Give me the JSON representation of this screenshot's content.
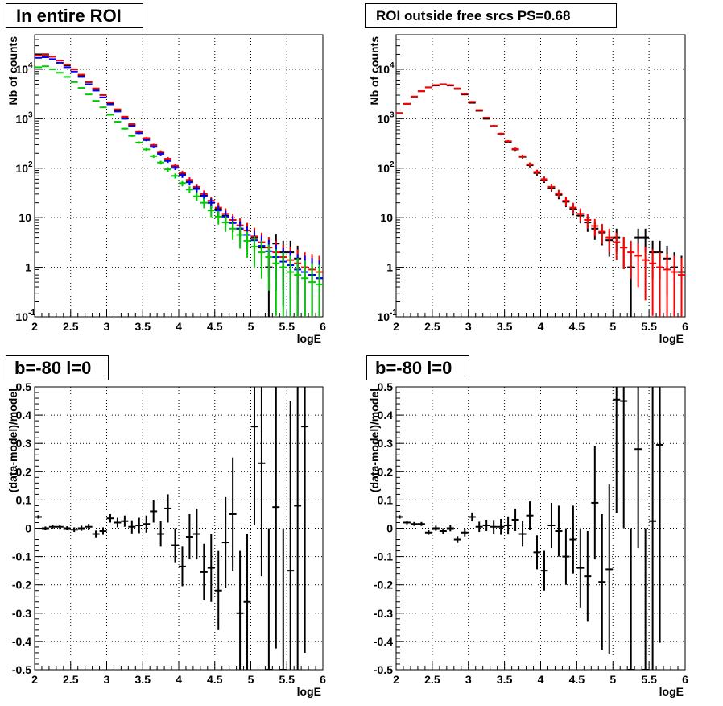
{
  "titles": {
    "p1": "In entire ROI",
    "p2": "ROI outside free srcs PS=0.68",
    "p3": "b=-80 l=0",
    "p4": "b=-80 l=0"
  },
  "colors": {
    "data": "#000000",
    "model": "#ff0000",
    "blue": "#0000ff",
    "green": "#00cc00",
    "grid": "#000000"
  },
  "chart_data": [
    {
      "type": "scatter",
      "title": "In entire ROI",
      "xlabel": "logE",
      "ylabel": "Nb of counts",
      "xlim": [
        2,
        6
      ],
      "ylim": [
        0.1,
        50000
      ],
      "log_y": true,
      "grid": true,
      "x_ticks": [
        "2",
        "2.5",
        "3",
        "3.5",
        "4",
        "4.5",
        "5",
        "5.5",
        "6"
      ],
      "series": [
        {
          "color": "#000000",
          "x": [
            2.05,
            2.15,
            2.25,
            2.35,
            2.45,
            2.55,
            2.65,
            2.75,
            2.85,
            2.95,
            3.05,
            3.15,
            3.25,
            3.35,
            3.45,
            3.55,
            3.65,
            3.75,
            3.85,
            3.95,
            4.05,
            4.15,
            4.25,
            4.35,
            4.45,
            4.55,
            4.65,
            4.75,
            4.85,
            4.95,
            5.05,
            5.15,
            5.25,
            5.35,
            5.45,
            5.55,
            5.65,
            5.75,
            5.85,
            5.95
          ],
          "y": [
            20000,
            20000,
            18000,
            15000,
            12000,
            10000,
            7500,
            5500,
            4000,
            3000,
            2100,
            1500,
            1050,
            750,
            550,
            400,
            290,
            210,
            150,
            110,
            75,
            55,
            40,
            28,
            20,
            15,
            11,
            8,
            6,
            4.5,
            4,
            2.5,
            1,
            3,
            2,
            2,
            1.5,
            0.8,
            0.7,
            0.6
          ]
        },
        {
          "color": "#ff0000",
          "x": [
            2.05,
            2.15,
            2.25,
            2.35,
            2.45,
            2.55,
            2.65,
            2.75,
            2.85,
            2.95,
            3.05,
            3.15,
            3.25,
            3.35,
            3.45,
            3.55,
            3.65,
            3.75,
            3.85,
            3.95,
            4.05,
            4.15,
            4.25,
            4.35,
            4.45,
            4.55,
            4.65,
            4.75,
            4.85,
            4.95,
            5.05,
            5.15,
            5.25,
            5.35,
            5.45,
            5.55,
            5.65,
            5.75,
            5.85,
            5.95
          ],
          "y": [
            19000,
            19500,
            18000,
            15000,
            12500,
            10000,
            7800,
            5600,
            4100,
            3000,
            2150,
            1550,
            1100,
            780,
            560,
            405,
            295,
            215,
            155,
            112,
            80,
            58,
            42,
            30,
            22,
            16,
            12,
            9,
            7,
            5.5,
            4.2,
            3.2,
            2.5,
            2,
            1.6,
            1.4,
            1.2,
            1,
            0.9,
            0.8
          ]
        },
        {
          "color": "#0000ff",
          "x": [
            2.05,
            2.15,
            2.25,
            2.35,
            2.45,
            2.55,
            2.65,
            2.75,
            2.85,
            2.95,
            3.05,
            3.15,
            3.25,
            3.35,
            3.45,
            3.55,
            3.65,
            3.75,
            3.85,
            3.95,
            4.05,
            4.15,
            4.25,
            4.35,
            4.45,
            4.55,
            4.65,
            4.75,
            4.85,
            4.95,
            5.05,
            5.15,
            5.25,
            5.35,
            5.45,
            5.55,
            5.65,
            5.75,
            5.85,
            5.95
          ],
          "y": [
            17000,
            17500,
            16000,
            13500,
            11000,
            9000,
            7000,
            5000,
            3700,
            2700,
            1950,
            1400,
            1000,
            710,
            510,
            370,
            270,
            195,
            140,
            102,
            72,
            52,
            38,
            27,
            20,
            14,
            10.5,
            7.8,
            6,
            4.5,
            3.5,
            2.7,
            2.1,
            1.6,
            1.3,
            1.1,
            0.9,
            0.8,
            0.7,
            0.6
          ]
        },
        {
          "color": "#00cc00",
          "x": [
            2.05,
            2.15,
            2.25,
            2.35,
            2.45,
            2.55,
            2.65,
            2.75,
            2.85,
            2.95,
            3.05,
            3.15,
            3.25,
            3.35,
            3.45,
            3.55,
            3.65,
            3.75,
            3.85,
            3.95,
            4.05,
            4.15,
            4.25,
            4.35,
            4.45,
            4.55,
            4.65,
            4.75,
            4.85,
            4.95,
            5.05,
            5.15,
            5.25,
            5.35,
            5.45,
            5.55,
            5.65,
            5.75,
            5.85,
            5.95
          ],
          "y": [
            11000,
            11500,
            10000,
            8500,
            7000,
            5500,
            4200,
            3100,
            2300,
            1700,
            1200,
            870,
            630,
            450,
            330,
            240,
            175,
            130,
            95,
            70,
            50,
            37,
            27,
            20,
            14,
            10.5,
            8,
            6,
            4.5,
            3.4,
            2.6,
            2,
            1.6,
            1.2,
            1,
            0.8,
            0.7,
            0.6,
            0.5,
            0.45
          ]
        }
      ]
    },
    {
      "type": "scatter",
      "title": "ROI outside free srcs PS=0.68",
      "xlabel": "logE",
      "ylabel": "Nb of counts",
      "xlim": [
        2,
        6
      ],
      "ylim": [
        0.1,
        50000
      ],
      "log_y": true,
      "grid": true,
      "x_ticks": [
        "2",
        "2.5",
        "3",
        "3.5",
        "4",
        "4.5",
        "5",
        "5.5",
        "6"
      ],
      "series": [
        {
          "color": "#000000",
          "x": [
            2.05,
            2.15,
            2.25,
            2.35,
            2.45,
            2.55,
            2.65,
            2.75,
            2.85,
            2.95,
            3.05,
            3.15,
            3.25,
            3.35,
            3.45,
            3.55,
            3.65,
            3.75,
            3.85,
            3.95,
            4.05,
            4.15,
            4.25,
            4.35,
            4.45,
            4.55,
            4.65,
            4.75,
            4.85,
            4.95,
            5.05,
            5.15,
            5.25,
            5.35,
            5.45,
            5.55,
            5.65,
            5.75,
            5.85,
            5.95
          ],
          "y": [
            1300,
            2000,
            2800,
            3600,
            4300,
            4700,
            4900,
            4700,
            4000,
            3100,
            2100,
            1450,
            1000,
            700,
            480,
            340,
            240,
            170,
            115,
            80,
            58,
            40,
            29,
            21,
            15,
            11,
            8,
            6,
            5,
            3.5,
            4,
            2.5,
            1,
            4,
            4,
            2,
            2,
            1.5,
            1,
            0.8
          ]
        },
        {
          "color": "#ff0000",
          "x": [
            2.05,
            2.15,
            2.25,
            2.35,
            2.45,
            2.55,
            2.65,
            2.75,
            2.85,
            2.95,
            3.05,
            3.15,
            3.25,
            3.35,
            3.45,
            3.55,
            3.65,
            3.75,
            3.85,
            3.95,
            4.05,
            4.15,
            4.25,
            4.35,
            4.45,
            4.55,
            4.65,
            4.75,
            4.85,
            4.95,
            5.05,
            5.15,
            5.25,
            5.35,
            5.45,
            5.55,
            5.65,
            5.75,
            5.85,
            5.95
          ],
          "y": [
            1300,
            2000,
            2800,
            3600,
            4300,
            4800,
            5000,
            4800,
            4100,
            3200,
            2200,
            1500,
            1050,
            720,
            500,
            350,
            245,
            175,
            120,
            84,
            60,
            42,
            31,
            22,
            16,
            12,
            9,
            6.8,
            5.2,
            4,
            3.2,
            2.5,
            2,
            1.7,
            1.4,
            1.2,
            1,
            0.9,
            0.8,
            0.7
          ]
        }
      ]
    },
    {
      "type": "scatter",
      "title": "b=-80 l=0",
      "xlabel": "logE",
      "ylabel": "(data-model)/model",
      "xlim": [
        2,
        6
      ],
      "ylim": [
        -0.5,
        0.5
      ],
      "grid": true,
      "x_ticks": [
        "2",
        "2.5",
        "3",
        "3.5",
        "4",
        "4.5",
        "5",
        "5.5",
        "6"
      ],
      "y_ticks": [
        "-0.5",
        "-0.4",
        "-0.3",
        "-0.2",
        "-0.1",
        "0",
        "0.1",
        "0.2",
        "0.3",
        "0.4",
        "0.5"
      ],
      "series": [
        {
          "color": "#000000",
          "x": [
            2.05,
            2.15,
            2.25,
            2.35,
            2.45,
            2.55,
            2.65,
            2.75,
            2.85,
            2.95,
            3.05,
            3.15,
            3.25,
            3.35,
            3.45,
            3.55,
            3.65,
            3.75,
            3.85,
            3.95,
            4.05,
            4.15,
            4.25,
            4.35,
            4.45,
            4.55,
            4.65,
            4.75,
            4.85,
            4.95,
            5.05,
            5.15,
            5.25,
            5.35,
            5.45,
            5.55,
            5.65,
            5.75
          ],
          "y": [
            0.04,
            0.0,
            0.005,
            0.005,
            0.0,
            -0.005,
            0.0,
            0.005,
            -0.02,
            -0.01,
            0.035,
            0.02,
            0.025,
            0.005,
            0.01,
            0.015,
            0.06,
            -0.02,
            0.07,
            -0.06,
            -0.135,
            -0.03,
            -0.02,
            -0.155,
            -0.14,
            -0.22,
            -0.05,
            0.05,
            -0.3,
            -0.26,
            0.36,
            0.23,
            -0.5,
            0.075,
            -0.5,
            -0.15,
            0.08,
            0.36
          ],
          "err": [
            0.006,
            0.006,
            0.006,
            0.007,
            0.007,
            0.008,
            0.009,
            0.01,
            0.012,
            0.013,
            0.015,
            0.017,
            0.02,
            0.023,
            0.027,
            0.03,
            0.04,
            0.045,
            0.05,
            0.06,
            0.07,
            0.08,
            0.09,
            0.1,
            0.12,
            0.14,
            0.16,
            0.2,
            0.22,
            0.24,
            0.35,
            0.4,
            0.5,
            0.5,
            0.5,
            0.6,
            0.7,
            0.8
          ]
        }
      ]
    },
    {
      "type": "scatter",
      "title": "b=-80 l=0",
      "xlabel": "logE",
      "ylabel": "(data-model)/model",
      "xlim": [
        2,
        6
      ],
      "ylim": [
        -0.5,
        0.5
      ],
      "grid": true,
      "x_ticks": [
        "2",
        "2.5",
        "3",
        "3.5",
        "4",
        "4.5",
        "5",
        "5.5",
        "6"
      ],
      "y_ticks": [
        "-0.5",
        "-0.4",
        "-0.3",
        "-0.2",
        "-0.1",
        "0",
        "0.1",
        "0.2",
        "0.3",
        "0.4",
        "0.5"
      ],
      "series": [
        {
          "color": "#000000",
          "x": [
            2.05,
            2.15,
            2.25,
            2.35,
            2.45,
            2.55,
            2.65,
            2.75,
            2.85,
            2.95,
            3.05,
            3.15,
            3.25,
            3.35,
            3.45,
            3.55,
            3.65,
            3.75,
            3.85,
            3.95,
            4.05,
            4.15,
            4.25,
            4.35,
            4.45,
            4.55,
            4.65,
            4.75,
            4.85,
            4.95,
            5.05,
            5.15,
            5.25,
            5.35,
            5.45,
            5.55,
            5.65
          ],
          "y": [
            0.04,
            0.02,
            0.015,
            0.015,
            -0.015,
            0.0,
            -0.01,
            0.0,
            -0.04,
            -0.015,
            0.04,
            0.005,
            0.01,
            0.005,
            0.005,
            0.01,
            0.03,
            -0.02,
            0.045,
            -0.085,
            -0.15,
            0.01,
            -0.01,
            -0.1,
            -0.04,
            -0.14,
            -0.17,
            0.09,
            -0.19,
            -0.145,
            0.455,
            0.45,
            -0.5,
            0.28,
            -0.5,
            0.025,
            0.295
          ],
          "err": [
            0.006,
            0.006,
            0.007,
            0.007,
            0.008,
            0.009,
            0.01,
            0.011,
            0.012,
            0.014,
            0.016,
            0.018,
            0.02,
            0.024,
            0.028,
            0.032,
            0.04,
            0.045,
            0.05,
            0.06,
            0.07,
            0.08,
            0.09,
            0.1,
            0.12,
            0.14,
            0.16,
            0.2,
            0.24,
            0.3,
            0.4,
            0.45,
            0.5,
            0.35,
            0.5,
            0.6,
            0.7
          ]
        }
      ]
    }
  ]
}
